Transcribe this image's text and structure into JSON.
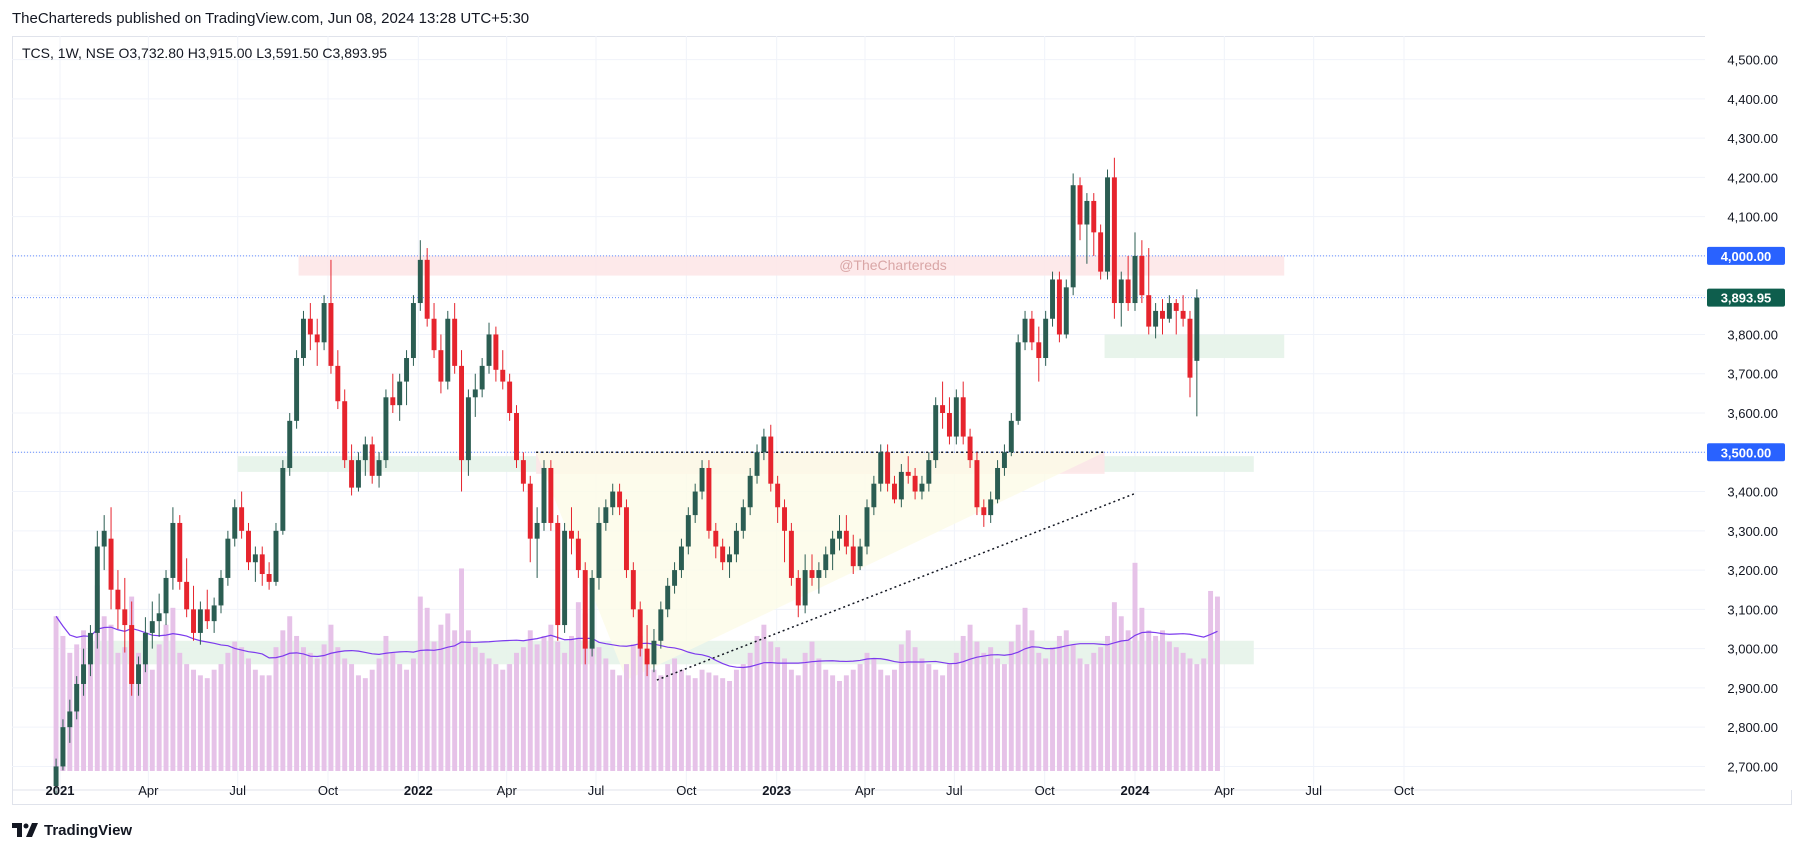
{
  "header": {
    "published": "TheChartereds published on TradingView.com, Jun 08, 2024 13:28 UTC+5:30",
    "symbol_line": "TCS, 1W, NSE  O3,732.80  H3,915.00  L3,591.50  C3,893.95"
  },
  "footer": {
    "brand": "TradingView",
    "logo_icon": "tradingview-logo-icon"
  },
  "colors": {
    "up": "#2b5d52",
    "down": "#e6242d",
    "volume": "#e6c2e8",
    "ma_line": "#7c3aed",
    "grid": "#f0f3fa",
    "resistance_zone": "#fde7e8",
    "support_zone": "#e5f3e9",
    "triangle_fill": "#fdfbe7",
    "price_badge_blue": "#2962ff",
    "price_badge_green": "#0e5e4d"
  },
  "chart_data": {
    "type": "candlestick",
    "symbol": "TCS",
    "interval": "1W",
    "exchange": "NSE",
    "ohlc_last": {
      "open": 3732.8,
      "high": 3915.0,
      "low": 3591.5,
      "close": 3893.95
    },
    "watermark": "@TheChartereds",
    "y_axis": {
      "range": [
        2640,
        4560
      ],
      "ticks": [
        "4,500.00",
        "4,400.00",
        "4,300.00",
        "4,200.00",
        "4,100.00",
        "4,000.00",
        "3,900.00",
        "3,800.00",
        "3,700.00",
        "3,600.00",
        "3,500.00",
        "3,400.00",
        "3,300.00",
        "3,200.00",
        "3,100.00",
        "3,000.00",
        "2,900.00",
        "2,800.00",
        "2,700.00"
      ],
      "tick_values": [
        4500,
        4400,
        4300,
        4200,
        4100,
        4000,
        3900,
        3800,
        3700,
        3600,
        3500,
        3400,
        3300,
        3200,
        3100,
        3000,
        2900,
        2800,
        2700
      ]
    },
    "x_axis": {
      "labels": [
        "2021",
        "Apr",
        "Jul",
        "Oct",
        "2022",
        "Apr",
        "Jul",
        "Oct",
        "2023",
        "Apr",
        "Jul",
        "Oct",
        "2024",
        "Apr",
        "Jul",
        "Oct"
      ],
      "label_dates": [
        "2021-01",
        "2021-04",
        "2021-07",
        "2021-10",
        "2022-01",
        "2022-04",
        "2022-07",
        "2022-10",
        "2023-01",
        "2023-04",
        "2023-07",
        "2023-10",
        "2024-01",
        "2024-04",
        "2024-07",
        "2024-10"
      ],
      "bold": [
        true,
        false,
        false,
        false,
        true,
        false,
        false,
        false,
        true,
        false,
        false,
        false,
        true,
        false,
        false,
        false
      ]
    },
    "price_badges": [
      {
        "value": 4000,
        "label": "4,000.00",
        "style": "blue"
      },
      {
        "value": 3893.95,
        "label": "3,893.95",
        "style": "green"
      },
      {
        "value": 3500,
        "label": "3,500.00",
        "style": "blue"
      }
    ],
    "horizontal_lines": [
      4000,
      3893.95,
      3500
    ],
    "zones": [
      {
        "from": "2021-09",
        "to": "2024-06",
        "low": 3950,
        "high": 4000,
        "kind": "resistance"
      },
      {
        "from": "2023-12",
        "to": "2024-06",
        "low": 3740,
        "high": 3800,
        "kind": "support"
      },
      {
        "from": "2021-07",
        "to": "2024-05",
        "low": 3450,
        "high": 3490,
        "kind": "support"
      },
      {
        "from": "2022-05",
        "to": "2023-12",
        "low": 3445,
        "high": 3500,
        "kind": "resistance"
      },
      {
        "from": "2021-02",
        "to": "2024-05",
        "low": 2960,
        "high": 3020,
        "kind": "support"
      }
    ],
    "trendlines": [
      {
        "from": [
          "2022-05",
          3500
        ],
        "to": [
          "2023-12",
          3500
        ],
        "style": "dotted"
      },
      {
        "from": [
          "2022-09",
          2920
        ],
        "to": [
          "2024-01",
          3395
        ],
        "style": "dotted"
      }
    ],
    "triangle": [
      [
        "2022-05",
        3500
      ],
      [
        "2023-12",
        3500
      ],
      [
        "2022-08",
        2920
      ]
    ],
    "candles": [
      [
        2650,
        2720,
        2630,
        2700
      ],
      [
        2700,
        2820,
        2690,
        2800
      ],
      [
        2800,
        2870,
        2760,
        2840
      ],
      [
        2840,
        2930,
        2820,
        2910
      ],
      [
        2910,
        3000,
        2880,
        2960
      ],
      [
        2960,
        3060,
        2930,
        3040
      ],
      [
        3040,
        3300,
        3000,
        3260
      ],
      [
        3260,
        3340,
        3200,
        3300
      ],
      [
        3280,
        3360,
        3100,
        3150
      ],
      [
        3150,
        3200,
        3050,
        3100
      ],
      [
        3100,
        3180,
        2990,
        3060
      ],
      [
        3060,
        3120,
        2880,
        2910
      ],
      [
        2910,
        2980,
        2880,
        2960
      ],
      [
        2960,
        3080,
        2940,
        3040
      ],
      [
        3040,
        3120,
        3000,
        3070
      ],
      [
        3070,
        3140,
        3030,
        3090
      ],
      [
        3090,
        3200,
        3060,
        3180
      ],
      [
        3180,
        3360,
        3150,
        3320
      ],
      [
        3320,
        3340,
        3150,
        3170
      ],
      [
        3170,
        3230,
        3080,
        3100
      ],
      [
        3100,
        3160,
        3020,
        3040
      ],
      [
        3040,
        3120,
        3010,
        3100
      ],
      [
        3100,
        3150,
        3050,
        3070
      ],
      [
        3070,
        3130,
        3040,
        3110
      ],
      [
        3110,
        3200,
        3090,
        3180
      ],
      [
        3180,
        3300,
        3160,
        3280
      ],
      [
        3280,
        3380,
        3260,
        3360
      ],
      [
        3360,
        3400,
        3280,
        3300
      ],
      [
        3300,
        3320,
        3200,
        3220
      ],
      [
        3220,
        3260,
        3170,
        3240
      ],
      [
        3240,
        3260,
        3160,
        3190
      ],
      [
        3190,
        3220,
        3150,
        3170
      ],
      [
        3170,
        3320,
        3160,
        3300
      ],
      [
        3300,
        3480,
        3290,
        3460
      ],
      [
        3460,
        3600,
        3440,
        3580
      ],
      [
        3580,
        3760,
        3560,
        3740
      ],
      [
        3740,
        3860,
        3720,
        3840
      ],
      [
        3840,
        3880,
        3760,
        3800
      ],
      [
        3800,
        3840,
        3720,
        3780
      ],
      [
        3780,
        3900,
        3760,
        3880
      ],
      [
        3880,
        3990,
        3700,
        3720
      ],
      [
        3720,
        3760,
        3610,
        3630
      ],
      [
        3630,
        3660,
        3460,
        3480
      ],
      [
        3480,
        3520,
        3390,
        3410
      ],
      [
        3410,
        3500,
        3400,
        3480
      ],
      [
        3480,
        3540,
        3440,
        3520
      ],
      [
        3520,
        3540,
        3420,
        3440
      ],
      [
        3440,
        3500,
        3410,
        3480
      ],
      [
        3480,
        3660,
        3460,
        3640
      ],
      [
        3640,
        3700,
        3600,
        3620
      ],
      [
        3620,
        3700,
        3580,
        3680
      ],
      [
        3680,
        3760,
        3620,
        3740
      ],
      [
        3740,
        3900,
        3720,
        3880
      ],
      [
        3880,
        4040,
        3860,
        3990
      ],
      [
        3990,
        4020,
        3820,
        3840
      ],
      [
        3840,
        3880,
        3740,
        3760
      ],
      [
        3760,
        3800,
        3650,
        3680
      ],
      [
        3680,
        3860,
        3660,
        3840
      ],
      [
        3840,
        3880,
        3700,
        3720
      ],
      [
        3720,
        3760,
        3400,
        3480
      ],
      [
        3480,
        3660,
        3440,
        3640
      ],
      [
        3640,
        3700,
        3590,
        3660
      ],
      [
        3660,
        3740,
        3640,
        3720
      ],
      [
        3720,
        3830,
        3700,
        3800
      ],
      [
        3800,
        3820,
        3680,
        3710
      ],
      [
        3710,
        3760,
        3660,
        3680
      ],
      [
        3680,
        3700,
        3580,
        3600
      ],
      [
        3600,
        3620,
        3460,
        3480
      ],
      [
        3480,
        3500,
        3400,
        3420
      ],
      [
        3420,
        3440,
        3220,
        3280
      ],
      [
        3280,
        3360,
        3180,
        3320
      ],
      [
        3320,
        3480,
        3300,
        3460
      ],
      [
        3460,
        3480,
        3300,
        3320
      ],
      [
        3320,
        3340,
        3020,
        3060
      ],
      [
        3060,
        3320,
        3040,
        3300
      ],
      [
        3300,
        3360,
        3240,
        3280
      ],
      [
        3280,
        3300,
        3180,
        3200
      ],
      [
        3200,
        3220,
        2960,
        3000
      ],
      [
        3000,
        3200,
        2980,
        3180
      ],
      [
        3180,
        3360,
        3150,
        3320
      ],
      [
        3320,
        3380,
        3300,
        3360
      ],
      [
        3360,
        3420,
        3340,
        3400
      ],
      [
        3400,
        3420,
        3340,
        3360
      ],
      [
        3360,
        3380,
        3180,
        3200
      ],
      [
        3200,
        3220,
        3080,
        3100
      ],
      [
        3100,
        3120,
        2980,
        3000
      ],
      [
        3000,
        3060,
        2930,
        2960
      ],
      [
        2960,
        3050,
        2940,
        3020
      ],
      [
        3020,
        3120,
        3000,
        3100
      ],
      [
        3100,
        3180,
        3080,
        3160
      ],
      [
        3160,
        3220,
        3140,
        3200
      ],
      [
        3200,
        3280,
        3180,
        3260
      ],
      [
        3260,
        3360,
        3240,
        3340
      ],
      [
        3340,
        3420,
        3320,
        3400
      ],
      [
        3400,
        3480,
        3380,
        3460
      ],
      [
        3460,
        3480,
        3280,
        3300
      ],
      [
        3300,
        3320,
        3230,
        3260
      ],
      [
        3260,
        3280,
        3200,
        3220
      ],
      [
        3220,
        3260,
        3180,
        3240
      ],
      [
        3240,
        3320,
        3220,
        3300
      ],
      [
        3300,
        3380,
        3280,
        3360
      ],
      [
        3360,
        3460,
        3340,
        3440
      ],
      [
        3440,
        3520,
        3420,
        3500
      ],
      [
        3500,
        3560,
        3480,
        3540
      ],
      [
        3540,
        3570,
        3400,
        3420
      ],
      [
        3420,
        3440,
        3320,
        3360
      ],
      [
        3360,
        3380,
        3220,
        3300
      ],
      [
        3300,
        3320,
        3160,
        3180
      ],
      [
        3180,
        3200,
        3080,
        3110
      ],
      [
        3110,
        3240,
        3090,
        3200
      ],
      [
        3200,
        3240,
        3160,
        3180
      ],
      [
        3180,
        3220,
        3140,
        3200
      ],
      [
        3200,
        3260,
        3180,
        3240
      ],
      [
        3240,
        3300,
        3200,
        3280
      ],
      [
        3280,
        3340,
        3250,
        3300
      ],
      [
        3300,
        3340,
        3240,
        3260
      ],
      [
        3260,
        3290,
        3190,
        3210
      ],
      [
        3210,
        3280,
        3200,
        3260
      ],
      [
        3260,
        3380,
        3240,
        3360
      ],
      [
        3360,
        3440,
        3340,
        3420
      ],
      [
        3420,
        3520,
        3400,
        3500
      ],
      [
        3500,
        3520,
        3400,
        3420
      ],
      [
        3420,
        3440,
        3370,
        3380
      ],
      [
        3380,
        3470,
        3360,
        3450
      ],
      [
        3450,
        3490,
        3420,
        3440
      ],
      [
        3440,
        3460,
        3380,
        3400
      ],
      [
        3400,
        3440,
        3380,
        3420
      ],
      [
        3420,
        3500,
        3400,
        3480
      ],
      [
        3480,
        3640,
        3460,
        3620
      ],
      [
        3620,
        3680,
        3560,
        3600
      ],
      [
        3600,
        3640,
        3520,
        3540
      ],
      [
        3540,
        3660,
        3520,
        3640
      ],
      [
        3640,
        3680,
        3520,
        3540
      ],
      [
        3540,
        3560,
        3460,
        3480
      ],
      [
        3480,
        3500,
        3340,
        3360
      ],
      [
        3360,
        3380,
        3310,
        3340
      ],
      [
        3340,
        3400,
        3320,
        3380
      ],
      [
        3380,
        3480,
        3370,
        3460
      ],
      [
        3460,
        3520,
        3440,
        3500
      ],
      [
        3500,
        3600,
        3490,
        3580
      ],
      [
        3580,
        3800,
        3570,
        3780
      ],
      [
        3780,
        3860,
        3760,
        3840
      ],
      [
        3840,
        3860,
        3760,
        3780
      ],
      [
        3780,
        3820,
        3680,
        3740
      ],
      [
        3740,
        3860,
        3720,
        3840
      ],
      [
        3840,
        3960,
        3820,
        3940
      ],
      [
        3940,
        3960,
        3780,
        3800
      ],
      [
        3800,
        3940,
        3790,
        3920
      ],
      [
        3920,
        4210,
        3900,
        4180
      ],
      [
        4180,
        4200,
        4040,
        4080
      ],
      [
        4080,
        4160,
        3980,
        4140
      ],
      [
        4140,
        4160,
        4000,
        4060
      ],
      [
        4060,
        4080,
        3940,
        3960
      ],
      [
        3960,
        4220,
        3940,
        4200
      ],
      [
        4200,
        4250,
        3840,
        3880
      ],
      [
        3880,
        3960,
        3820,
        3940
      ],
      [
        3940,
        4000,
        3860,
        3880
      ],
      [
        3880,
        4060,
        3860,
        4000
      ],
      [
        4000,
        4040,
        3880,
        3900
      ],
      [
        3900,
        4020,
        3800,
        3820
      ],
      [
        3820,
        3880,
        3790,
        3860
      ],
      [
        3860,
        3890,
        3800,
        3840
      ],
      [
        3840,
        3900,
        3830,
        3880
      ],
      [
        3880,
        3890,
        3800,
        3860
      ],
      [
        3860,
        3900,
        3820,
        3840
      ],
      [
        3840,
        3860,
        3640,
        3690
      ],
      [
        3732.8,
        3915,
        3591.5,
        3893.95
      ]
    ],
    "start_date": "2020-12-28",
    "interval_days": 7,
    "volume": {
      "values": [
        0.55,
        0.48,
        0.42,
        0.45,
        0.5,
        0.47,
        0.66,
        0.55,
        0.52,
        0.42,
        0.44,
        0.62,
        0.42,
        0.38,
        0.36,
        0.45,
        0.52,
        0.58,
        0.42,
        0.38,
        0.36,
        0.34,
        0.33,
        0.36,
        0.38,
        0.42,
        0.46,
        0.44,
        0.4,
        0.36,
        0.34,
        0.34,
        0.44,
        0.5,
        0.55,
        0.48,
        0.44,
        0.42,
        0.4,
        0.45,
        0.52,
        0.44,
        0.4,
        0.38,
        0.34,
        0.33,
        0.36,
        0.4,
        0.48,
        0.42,
        0.38,
        0.36,
        0.4,
        0.62,
        0.58,
        0.46,
        0.52,
        0.56,
        0.5,
        0.72,
        0.5,
        0.44,
        0.42,
        0.4,
        0.38,
        0.36,
        0.38,
        0.42,
        0.44,
        0.5,
        0.45,
        0.48,
        0.52,
        0.46,
        0.42,
        0.48,
        0.6,
        0.56,
        0.5,
        0.44,
        0.4,
        0.36,
        0.34,
        0.38,
        0.45,
        0.48,
        0.4,
        0.36,
        0.34,
        0.38,
        0.4,
        0.36,
        0.34,
        0.33,
        0.36,
        0.35,
        0.34,
        0.33,
        0.32,
        0.36,
        0.38,
        0.42,
        0.48,
        0.52,
        0.46,
        0.44,
        0.4,
        0.36,
        0.34,
        0.42,
        0.46,
        0.4,
        0.36,
        0.34,
        0.32,
        0.34,
        0.36,
        0.38,
        0.42,
        0.4,
        0.36,
        0.34,
        0.36,
        0.45,
        0.5,
        0.44,
        0.4,
        0.38,
        0.36,
        0.34,
        0.38,
        0.42,
        0.48,
        0.52,
        0.46,
        0.42,
        0.44,
        0.4,
        0.38,
        0.46,
        0.52,
        0.58,
        0.5,
        0.42,
        0.4,
        0.44,
        0.48,
        0.5,
        0.45,
        0.4,
        0.38,
        0.42,
        0.44,
        0.48,
        0.6,
        0.55,
        0.5,
        0.74,
        0.58,
        0.5,
        0.48,
        0.5,
        0.46,
        0.44,
        0.42,
        0.4,
        0.38,
        0.4,
        0.64,
        0.62
      ]
    },
    "moving_average": {
      "period": 20
    }
  }
}
